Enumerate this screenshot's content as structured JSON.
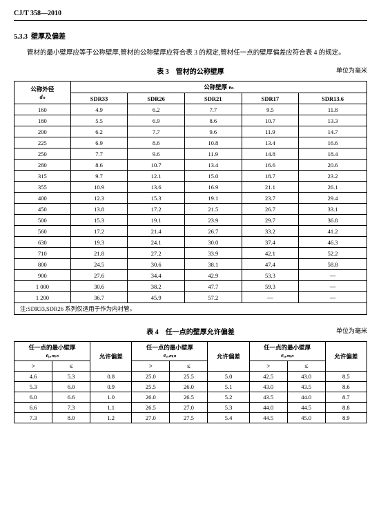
{
  "doc_number": "CJ/T 358—2010",
  "section_number": "5.3.3",
  "section_title": "壁厚及偏差",
  "paragraph": "管材的最小壁厚应等于公称壁厚,管材的公称壁厚应符合表 3 的规定,管材任一点的壁厚偏差应符合表 4 的规定。",
  "table3": {
    "title": "表 3　管材的公称壁厚",
    "unit": "单位为毫米",
    "header_dn": "公称外径",
    "header_dn_sym": "dₙ",
    "header_e": "公称壁厚 eₙ",
    "sdr_labels": [
      "SDR33",
      "SDR26",
      "SDR21",
      "SDR17",
      "SDR13.6"
    ],
    "rows": [
      [
        "160",
        "4.9",
        "6.2",
        "7.7",
        "9.5",
        "11.8"
      ],
      [
        "180",
        "5.5",
        "6.9",
        "8.6",
        "10.7",
        "13.3"
      ],
      [
        "200",
        "6.2",
        "7.7",
        "9.6",
        "11.9",
        "14.7"
      ],
      [
        "225",
        "6.9",
        "8.6",
        "10.8",
        "13.4",
        "16.6"
      ],
      [
        "250",
        "7.7",
        "9.6",
        "11.9",
        "14.8",
        "18.4"
      ],
      [
        "280",
        "8.6",
        "10.7",
        "13.4",
        "16.6",
        "20.6"
      ],
      [
        "315",
        "9.7",
        "12.1",
        "15.0",
        "18.7",
        "23.2"
      ],
      [
        "355",
        "10.9",
        "13.6",
        "16.9",
        "21.1",
        "26.1"
      ],
      [
        "400",
        "12.3",
        "15.3",
        "19.1",
        "23.7",
        "29.4"
      ],
      [
        "450",
        "13.8",
        "17.2",
        "21.5",
        "26.7",
        "33.1"
      ],
      [
        "500",
        "15.3",
        "19.1",
        "23.9",
        "29.7",
        "36.8"
      ],
      [
        "560",
        "17.2",
        "21.4",
        "26.7",
        "33.2",
        "41.2"
      ],
      [
        "630",
        "19.3",
        "24.1",
        "30.0",
        "37.4",
        "46.3"
      ],
      [
        "710",
        "21.8",
        "27.2",
        "33.9",
        "42.1",
        "52.2"
      ],
      [
        "800",
        "24.5",
        "30.6",
        "38.1",
        "47.4",
        "58.8"
      ],
      [
        "900",
        "27.6",
        "34.4",
        "42.9",
        "53.3",
        "—"
      ],
      [
        "1 000",
        "30.6",
        "38.2",
        "47.7",
        "59.3",
        "—"
      ],
      [
        "1 200",
        "36.7",
        "45.9",
        "57.2",
        "—",
        "—"
      ]
    ],
    "note": "注:SDR33,SDR26 系列仅适用于作为内衬管。"
  },
  "table4": {
    "title": "表 4　任一点的壁厚允许偏差",
    "unit": "单位为毫米",
    "header_thickness": "任一点的最小壁厚",
    "header_ey": "eᵧ,ₘᵢₙ",
    "header_tol": "允许偏差",
    "gt": ">",
    "le": "≤",
    "rows": [
      [
        "4.6",
        "5.3",
        "0.8",
        "25.0",
        "25.5",
        "5.0",
        "42.5",
        "43.0",
        "8.5"
      ],
      [
        "5.3",
        "6.0",
        "0.9",
        "25.5",
        "26.0",
        "5.1",
        "43.0",
        "43.5",
        "8.6"
      ],
      [
        "6.0",
        "6.6",
        "1.0",
        "26.0",
        "26.5",
        "5.2",
        "43.5",
        "44.0",
        "8.7"
      ],
      [
        "6.6",
        "7.3",
        "1.1",
        "26.5",
        "27.0",
        "5.3",
        "44.0",
        "44.5",
        "8.8"
      ],
      [
        "7.3",
        "8.0",
        "1.2",
        "27.0",
        "27.5",
        "5.4",
        "44.5",
        "45.0",
        "8.9"
      ]
    ]
  }
}
